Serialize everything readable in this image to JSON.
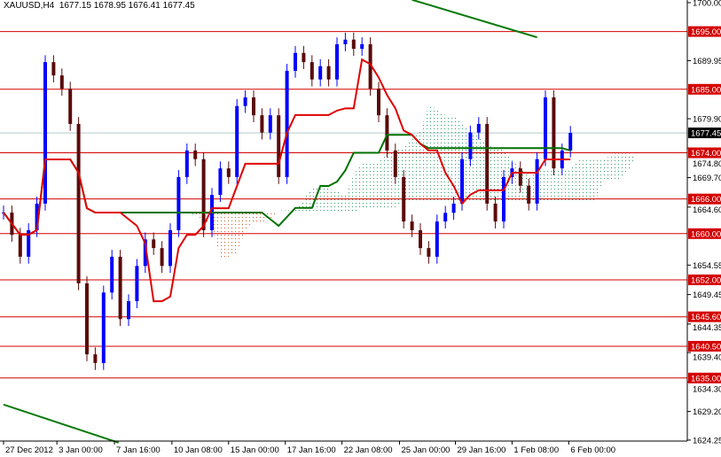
{
  "header": {
    "symbol": "XAUUSD,H4",
    "ohlc": "1677.15 1678.95 1676.41 1677.45"
  },
  "chart_data": {
    "type": "candlestick",
    "ylim": [
      1624.25,
      1700.0
    ],
    "y_ticks": [
      "1700.00",
      "1689.95",
      "1679.90",
      "1674.80",
      "1669.70",
      "1664.60",
      "1654.55",
      "1649.45",
      "1644.35",
      "1639.40",
      "1634.30",
      "1629.20",
      "1624.25"
    ],
    "x_ticks": [
      {
        "label": "27 Dec 2012",
        "bar": 0
      },
      {
        "label": "3 Jan 00:00",
        "bar": 6.4
      },
      {
        "label": "7 Jan 16:00",
        "bar": 13.3
      },
      {
        "label": "10 Jan 08:00",
        "bar": 20.2
      },
      {
        "label": "15 Jan 00:00",
        "bar": 27
      },
      {
        "label": "17 Jan 16:00",
        "bar": 33.8
      },
      {
        "label": "22 Jan 08:00",
        "bar": 40.6
      },
      {
        "label": "25 Jan 00:00",
        "bar": 47.5
      },
      {
        "label": "29 Jan 16:00",
        "bar": 54.2
      },
      {
        "label": "1 Feb 08:00",
        "bar": 61
      },
      {
        "label": "6 Feb 00:00",
        "bar": 67.8
      }
    ],
    "closes": [
      1663.65,
      1659.8,
      1656.0,
      1660.6,
      1665.2,
      1689.7,
      1687.4,
      1685.1,
      1679.0,
      1651.4,
      1639.1,
      1637.6,
      1649.8,
      1656.0,
      1645.2,
      1648.3,
      1654.4,
      1659.0,
      1657.5,
      1654.4,
      1660.6,
      1669.8,
      1674.4,
      1672.9,
      1660.6,
      1666.7,
      1671.3,
      1669.8,
      1682.1,
      1683.6,
      1680.5,
      1677.5,
      1680.5,
      1669.8,
      1688.2,
      1691.3,
      1689.7,
      1686.7,
      1689.0,
      1686.7,
      1692.8,
      1693.6,
      1692.0,
      1692.8,
      1685.1,
      1680.5,
      1674.4,
      1669.8,
      1662.1,
      1660.6,
      1657.5,
      1656.0,
      1662.1,
      1663.6,
      1665.2,
      1672.9,
      1677.5,
      1679.0,
      1665.2,
      1662.1,
      1669.8,
      1671.3,
      1668.3,
      1665.2,
      1672.9,
      1683.6,
      1671.3,
      1674.4,
      1677.45
    ],
    "levels": [
      "1695.00",
      "1685.00",
      "1674.00",
      "1666.00",
      "1660.00",
      "1652.00",
      "1645.60",
      "1640.50",
      "1635.00"
    ],
    "current_price": "1677.45",
    "trendlines": [
      {
        "from": {
          "bar": 49,
          "price": 1700.5
        },
        "to": {
          "bar": 64,
          "price": 1694.0
        }
      },
      {
        "from": {
          "bar": 0,
          "price": 1630.4
        },
        "to": {
          "bar": 13.8,
          "price": 1623.8
        }
      }
    ],
    "indicators": [
      "Ichimoku tenkan",
      "Ichimoku kijun",
      "Ichimoku cloud"
    ],
    "colors": {
      "bull": "#0000ff",
      "bear": "#5a0a0a",
      "level": "#d40000",
      "tenkan": "#e00000",
      "kijun": "#007000",
      "cloud_up": "#2a9d6a",
      "cloud_down": "#d45a2a",
      "trend": "#0a7a0a",
      "price_label": "#000000"
    }
  }
}
